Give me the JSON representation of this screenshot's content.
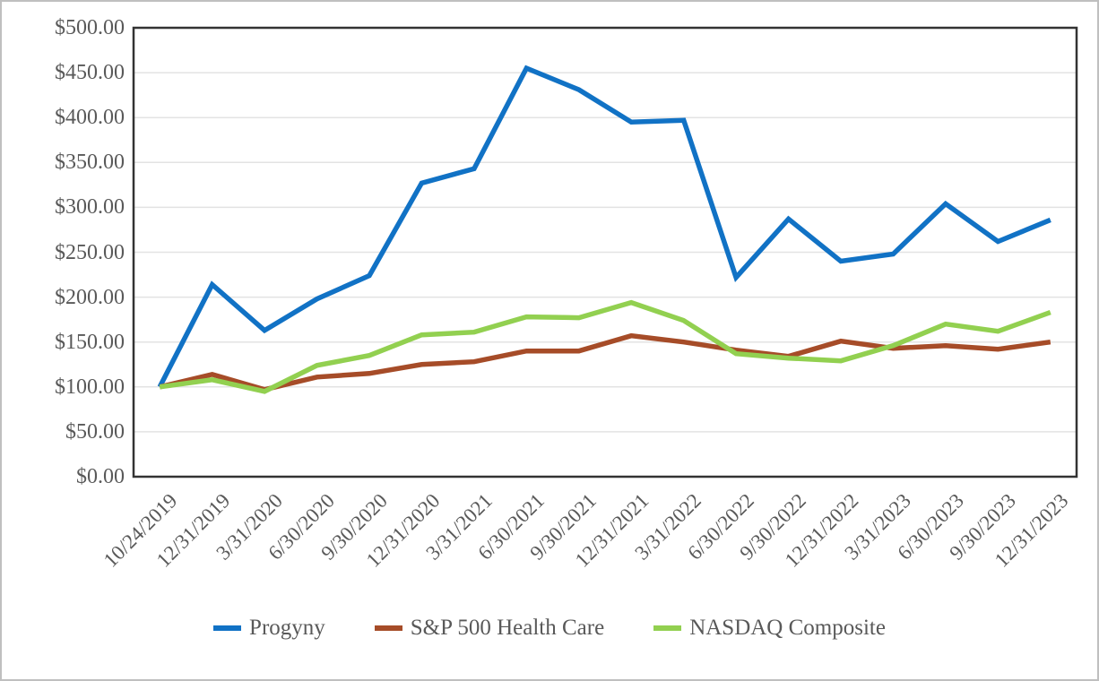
{
  "chart_data": {
    "type": "line",
    "title": "",
    "xlabel": "",
    "ylabel": "",
    "categories": [
      "10/24/2019",
      "12/31/2019",
      "3/31/2020",
      "6/30/2020",
      "9/30/2020",
      "12/31/2020",
      "3/31/2021",
      "6/30/2021",
      "9/30/2021",
      "12/31/2021",
      "3/31/2022",
      "6/30/2022",
      "9/30/2022",
      "12/31/2022",
      "3/31/2023",
      "6/30/2023",
      "9/30/2023",
      "12/31/2023"
    ],
    "series": [
      {
        "name": "Progyny",
        "color": "#1172C5",
        "values": [
          100,
          214,
          163,
          198,
          224,
          327,
          343,
          455,
          431,
          395,
          397,
          222,
          287,
          240,
          248,
          304,
          262,
          286
        ]
      },
      {
        "name": "S&P 500 Health Care",
        "color": "#A64C28",
        "values": [
          100,
          114,
          97,
          111,
          115,
          125,
          128,
          140,
          140,
          157,
          150,
          141,
          134,
          151,
          143,
          146,
          142,
          150
        ]
      },
      {
        "name": "NASDAQ Composite",
        "color": "#92D050",
        "values": [
          100,
          108,
          95,
          124,
          135,
          158,
          161,
          178,
          177,
          194,
          174,
          137,
          132,
          129,
          146,
          170,
          162,
          183
        ]
      }
    ],
    "ylim": [
      0,
      500
    ],
    "y_tick_step": 50,
    "y_tick_labels": [
      "$0.00",
      "$50.00",
      "$100.00",
      "$150.00",
      "$200.00",
      "$250.00",
      "$300.00",
      "$350.00",
      "$400.00",
      "$450.00",
      "$500.00"
    ],
    "grid": true,
    "legend_position": "bottom",
    "legend": [
      "Progyny",
      "S&P 500 Health Care",
      "NASDAQ Composite"
    ]
  },
  "colors": {
    "axis_text": "#595959",
    "gridline": "#E3E3E3",
    "plot_border": "#333333",
    "outer_border": "#BFBFBF",
    "background": "#FFFFFF"
  }
}
